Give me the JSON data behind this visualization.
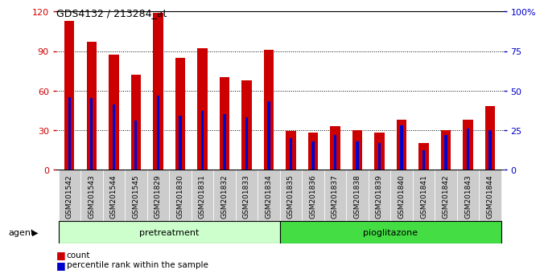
{
  "title": "GDS4132 / 213284_at",
  "samples": [
    "GSM201542",
    "GSM201543",
    "GSM201544",
    "GSM201545",
    "GSM201829",
    "GSM201830",
    "GSM201831",
    "GSM201832",
    "GSM201833",
    "GSM201834",
    "GSM201835",
    "GSM201836",
    "GSM201837",
    "GSM201838",
    "GSM201839",
    "GSM201840",
    "GSM201841",
    "GSM201842",
    "GSM201843",
    "GSM201844"
  ],
  "counts": [
    113,
    97,
    87,
    72,
    119,
    85,
    92,
    70,
    68,
    91,
    29,
    28,
    33,
    30,
    28,
    38,
    20,
    30,
    38,
    48
  ],
  "percentile_ranks": [
    46,
    45,
    41,
    31,
    47,
    34,
    37,
    35,
    33,
    43,
    20,
    18,
    22,
    18,
    17,
    28,
    12,
    22,
    26,
    25
  ],
  "bar_color": "#cc0000",
  "blue_color": "#0000cc",
  "pretreatment_color": "#ccffcc",
  "pioglitazone_color": "#44dd44",
  "pretreatment_label": "pretreatment",
  "pioglitazone_label": "pioglitazone",
  "agent_label": "agent",
  "ylim_left": [
    0,
    120
  ],
  "ylim_right": [
    0,
    100
  ],
  "yticks_left": [
    0,
    30,
    60,
    90,
    120
  ],
  "yticks_right": [
    0,
    25,
    50,
    75,
    100
  ],
  "right_ytick_labels": [
    "0",
    "25",
    "50",
    "75",
    "100%"
  ],
  "bar_width": 0.45,
  "blue_bar_width": 0.12,
  "background_color": "#ffffff",
  "xtick_bg_color": "#cccccc",
  "legend_count_label": "count",
  "legend_percentile_label": "percentile rank within the sample",
  "n_pretreatment": 10,
  "n_pioglitazone": 10
}
